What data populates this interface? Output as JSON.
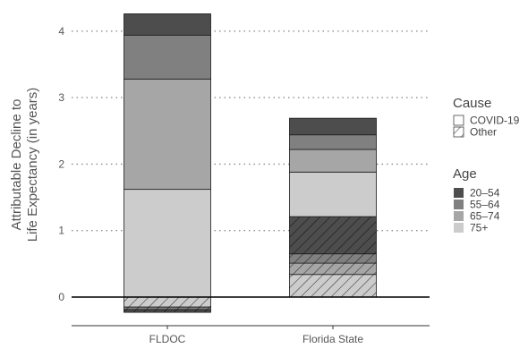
{
  "chart_data": {
    "type": "bar",
    "stacked": true,
    "categories": [
      "FLDOC",
      "Florida State"
    ],
    "ylabel_lines": [
      "Attributable Decline to",
      "Life Expectancy (in years)"
    ],
    "xlabel": "",
    "ylim": [
      -0.3,
      4.3
    ],
    "yticks": [
      0,
      1,
      2,
      3,
      4
    ],
    "grid": "horizontal dotted",
    "colors": {
      "20-54": "#4d4d4d",
      "55-64": "#808080",
      "65-74": "#a6a6a6",
      "75+": "#cccccc"
    },
    "series": [
      {
        "cause": "Other",
        "age": "75+",
        "values": [
          -0.15,
          0.34
        ]
      },
      {
        "cause": "Other",
        "age": "65-74",
        "values": [
          0.0,
          0.17
        ]
      },
      {
        "cause": "Other",
        "age": "55-64",
        "values": [
          -0.04,
          0.14
        ]
      },
      {
        "cause": "Other",
        "age": "20-54",
        "values": [
          -0.04,
          0.56
        ]
      },
      {
        "cause": "COVID-19",
        "age": "75+",
        "values": [
          1.62,
          0.67
        ]
      },
      {
        "cause": "COVID-19",
        "age": "65-74",
        "values": [
          1.66,
          0.34
        ]
      },
      {
        "cause": "COVID-19",
        "age": "55-64",
        "values": [
          0.66,
          0.22
        ]
      },
      {
        "cause": "COVID-19",
        "age": "20-54",
        "values": [
          0.32,
          0.25
        ]
      }
    ],
    "legend": {
      "placement": "right",
      "cause": {
        "title": "Cause",
        "items": [
          "COVID-19",
          "Other"
        ]
      },
      "age": {
        "title": "Age",
        "items": [
          "20–54",
          "55–64",
          "65–74",
          "75+"
        ]
      }
    }
  }
}
